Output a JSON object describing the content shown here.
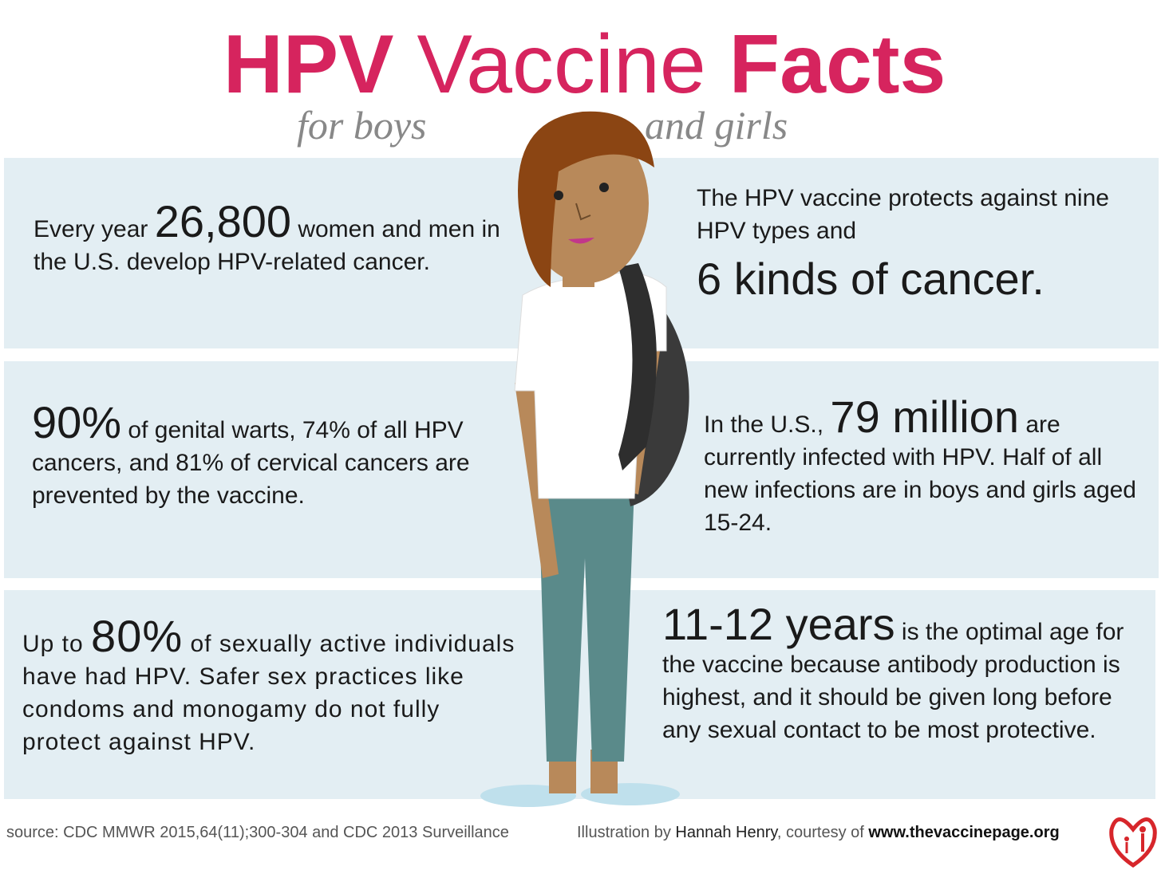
{
  "title": {
    "parts": [
      "HPV",
      "Vaccine",
      "Facts"
    ]
  },
  "subtitle": {
    "parts": [
      "for boys",
      "and girls"
    ]
  },
  "facts": [
    {
      "parts": [
        "Every year ",
        "26,800",
        " women and men in the U.S. develop HPV-related cancer."
      ]
    },
    {
      "parts": [
        "The HPV vaccine protects against nine HPV types and",
        "6 kinds of cancer."
      ]
    },
    {
      "parts": [
        "90%",
        " of genital warts, 74% of all HPV cancers, and 81% of cervical cancers are prevented by the vaccine."
      ]
    },
    {
      "parts": [
        "In the U.S., ",
        "79 million",
        " are currently infected with HPV. Half of all new infections are in boys and girls aged 15-24."
      ]
    },
    {
      "parts": [
        "Up to ",
        "80%",
        " of sexually active individuals have had HPV. Safer sex practices like condoms and monogamy do not fully protect against HPV."
      ]
    },
    {
      "parts": [
        "11-12 years",
        " is the optimal age for the vaccine because antibody production is highest, and it should be given long before any sexual contact to be most protective."
      ]
    }
  ],
  "footer": {
    "source": "source: CDC MMWR 2015,64(11);300-304 and CDC 2013 Surveillance",
    "credit": [
      "Illustration by ",
      "Hannah Henry",
      ", courtesy of ",
      "www.thevaccinepage.org"
    ]
  }
}
